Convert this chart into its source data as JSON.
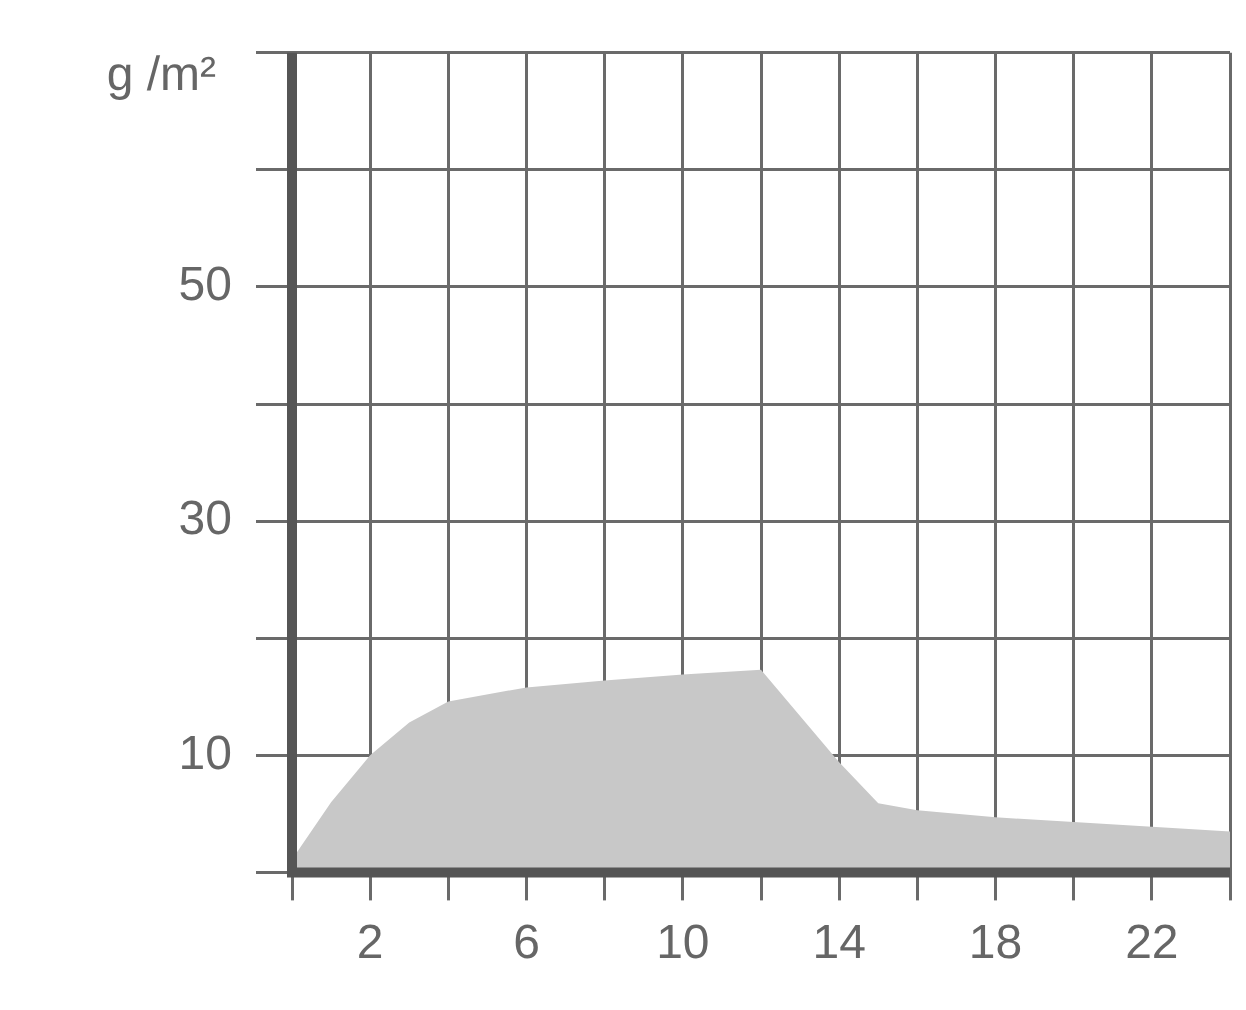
{
  "chart_data": {
    "type": "area",
    "ylabel": "g /m²",
    "x": [
      0,
      1,
      2,
      3,
      4,
      6,
      8,
      10,
      12,
      14,
      15,
      16,
      18,
      20,
      22,
      24
    ],
    "series": [
      {
        "color": "#c8c8c8",
        "values": [
          1.1,
          6,
          10,
          12.8,
          14.6,
          15.8,
          16.4,
          16.9,
          17.3,
          9.4,
          5.9,
          5.3,
          4.7,
          4.3,
          3.9,
          3.5
        ]
      }
    ],
    "xlim": [
      0,
      24
    ],
    "xticks": [
      {
        "value": 0,
        "label": null
      },
      2,
      {
        "value": 4,
        "label": null
      },
      6,
      {
        "value": 8,
        "label": null
      },
      10,
      {
        "value": 12,
        "label": null
      },
      14,
      {
        "value": 16,
        "label": null
      },
      18,
      {
        "value": 20,
        "label": null
      },
      22,
      {
        "value": 24,
        "label": null
      }
    ],
    "ylim": [
      0,
      70
    ],
    "yticks": [
      {
        "value": 0,
        "label": null
      },
      10,
      {
        "value": 20,
        "label": null
      },
      30,
      {
        "value": 40,
        "label": null
      },
      50,
      {
        "value": 60,
        "label": null
      },
      {
        "value": 70,
        "label": null
      }
    ],
    "grid": true,
    "legend": false
  }
}
